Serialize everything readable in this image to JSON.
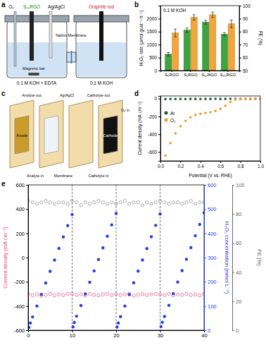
{
  "diagrams": {
    "panel_labels": [
      "a",
      "b",
      "c",
      "d",
      "e"
    ],
    "cell": {
      "o2": "O₂",
      "catalyst": "S₁₀RGO",
      "reference": "Ag/AgCl",
      "counter": "Graphite rod",
      "membrane": "Nafion Membrane",
      "stirrer": "Magnetic bar",
      "cathode_electrolyte": "0.1 M KOH + EDTA",
      "anode_electrolyte": "0.1 M KOH"
    },
    "flow_cell": {
      "anolyte_out": "Anolyte out",
      "reference": "Ag/AgCl",
      "catholyte_out": "Catholyte out",
      "anode": "Anode",
      "anolyte_in": "Analyte in",
      "membrane": "Membrane",
      "cathode": "Cathode",
      "catholyte_in": "Catholyte in",
      "o2_in": "O₂ in"
    }
  },
  "chart_data": [
    {
      "type": "bar",
      "categories": [
        "S₀RGO",
        "S₁RGO",
        "S₁₀RGO",
        "S₂₀RGO"
      ],
      "y_label": "H₂O₂ rate (μmol gcat⁻¹ h⁻¹)",
      "y2_label": "FE (%)",
      "annotations": [
        "0.1 M KOH"
      ],
      "ylim": [
        0,
        2500
      ],
      "yticks": [
        0,
        500,
        1000,
        1500,
        2000
      ],
      "y2lim": [
        50,
        100
      ],
      "y2ticks": [
        50,
        60,
        70,
        80,
        90,
        100
      ],
      "series": [
        {
          "color": "#3fa33f",
          "values": [
            630,
            1560,
            1860,
            1400
          ],
          "errors": [
            60,
            80,
            70,
            60
          ]
        },
        {
          "color": "#f2a53a",
          "axis": "y2",
          "values": [
            79,
            91,
            93,
            86
          ],
          "errors": [
            3,
            2,
            2,
            3
          ]
        }
      ]
    },
    {
      "type": "scatter",
      "x_label": "Potential (V vs. RHE)",
      "y_label": "Current density (mA cm⁻²)",
      "xlim": [
        0,
        1
      ],
      "xticks": [
        {
          "value": 0,
          "label": "0.0"
        },
        0.2,
        0.4,
        0.6,
        0.8,
        {
          "value": 1,
          "label": "1.0"
        }
      ],
      "ylim": [
        -700,
        30
      ],
      "yticks": [
        -600,
        -400,
        -200,
        0
      ],
      "legend": "upper left",
      "series": [
        {
          "name": "Ar",
          "color": "#1f5a3a",
          "marker": "circle",
          "x": [
            1,
            0.95,
            0.9,
            0.85,
            0.8,
            0.75,
            0.7,
            0.65,
            0.6,
            0.55,
            0.5,
            0.45,
            0.4,
            0.35,
            0.3,
            0.25,
            0.2,
            0.15,
            0.1,
            0.05
          ],
          "values": [
            -2,
            -2,
            -3,
            -2,
            -3,
            -3,
            -2,
            -3,
            -3,
            -2,
            -3,
            -3,
            -4,
            -3,
            -3,
            -4,
            -3,
            -4,
            -4,
            -5
          ]
        },
        {
          "name": "O₂",
          "color": "#f39a2a",
          "marker": "circle",
          "x": [
            1,
            0.95,
            0.9,
            0.85,
            0.8,
            0.75,
            0.7,
            0.65,
            0.6,
            0.55,
            0.5,
            0.45,
            0.4,
            0.35,
            0.3,
            0.25,
            0.2,
            0.15,
            0.1,
            0.05
          ],
          "values": [
            0,
            0,
            -1,
            -2,
            -4,
            -10,
            -35,
            -80,
            -115,
            -140,
            -152,
            -160,
            -170,
            -185,
            -210,
            -250,
            -310,
            -390,
            -500,
            -640
          ]
        }
      ]
    },
    {
      "type": "scatter",
      "y_label": "Current density (mA cm⁻²)",
      "y2_label": "H₂O₂ concentration (mmol L⁻¹)",
      "y3_label": "FE (%)",
      "xlim": [
        0,
        40
      ],
      "xticks": [
        0,
        10,
        20,
        30,
        40
      ],
      "ylim": [
        -600,
        600
      ],
      "yticks": [
        -600,
        -400,
        -200,
        0,
        200,
        400,
        600
      ],
      "y2lim": [
        0,
        600
      ],
      "y2ticks": [
        0,
        100,
        200,
        300,
        400,
        500,
        600
      ],
      "y3lim": [
        0,
        100
      ],
      "y3ticks": [
        0,
        20,
        40,
        60,
        80,
        100
      ],
      "cycle_boundaries": [
        10,
        20,
        30
      ],
      "series": [
        {
          "color": "#8a8a8a",
          "axis": "y3",
          "marker": "open-circle",
          "x": [
            0,
            1,
            2,
            3,
            4,
            5,
            6,
            7,
            8,
            9,
            10,
            11,
            12,
            13,
            14,
            15,
            16,
            17,
            18,
            19,
            20,
            21,
            22,
            23,
            24,
            25,
            26,
            27,
            28,
            29,
            30,
            31,
            32,
            33,
            34,
            35,
            36,
            37,
            38,
            39,
            40
          ],
          "values": [
            89,
            88,
            87,
            88,
            89,
            88,
            87,
            88,
            88,
            87,
            89,
            88,
            86,
            88,
            87,
            88,
            89,
            88,
            87,
            88,
            87,
            88,
            89,
            87,
            88,
            88,
            86,
            88,
            87,
            88,
            89,
            88,
            87,
            88,
            88,
            87,
            88,
            89,
            87,
            88,
            88
          ]
        },
        {
          "color": "#e8497a",
          "marker": "open-circle",
          "x": [
            0,
            1,
            2,
            3,
            4,
            5,
            6,
            7,
            8,
            9,
            10,
            11,
            12,
            13,
            14,
            15,
            16,
            17,
            18,
            19,
            20,
            21,
            22,
            23,
            24,
            25,
            26,
            27,
            28,
            29,
            30,
            31,
            32,
            33,
            34,
            35,
            36,
            37,
            38,
            39,
            40
          ],
          "values": [
            -300,
            -310,
            -305,
            -315,
            -308,
            -300,
            -312,
            -305,
            -310,
            -300,
            -298,
            -310,
            -305,
            -315,
            -300,
            -308,
            -312,
            -305,
            -300,
            -310,
            -303,
            -310,
            -305,
            -300,
            -315,
            -308,
            -302,
            -310,
            -305,
            -300,
            -305,
            -310,
            -300,
            -312,
            -305,
            -308,
            -300,
            -310,
            -305,
            -312,
            -300
          ]
        },
        {
          "color": "#1f3fe0",
          "axis": "y2",
          "marker": "circle",
          "x": [
            0.2,
            0.5,
            1,
            2,
            3,
            4,
            5,
            6,
            7,
            8,
            9,
            10,
            10.2,
            10.5,
            11,
            12,
            13,
            14,
            15,
            16,
            17,
            18,
            19,
            20,
            20.2,
            20.5,
            21,
            22,
            23,
            24,
            25,
            26,
            27,
            28,
            29,
            30,
            30.2,
            30.5,
            31,
            32,
            33,
            34,
            35,
            36,
            37,
            38,
            39,
            40
          ],
          "values": [
            12,
            30,
            55,
            100,
            148,
            195,
            243,
            290,
            338,
            385,
            432,
            478,
            14,
            32,
            58,
            102,
            150,
            198,
            245,
            292,
            340,
            388,
            435,
            482,
            13,
            30,
            56,
            100,
            147,
            196,
            244,
            290,
            337,
            386,
            433,
            480,
            15,
            33,
            57,
            103,
            151,
            199,
            246,
            293,
            341,
            390,
            437,
            485
          ]
        }
      ]
    }
  ]
}
